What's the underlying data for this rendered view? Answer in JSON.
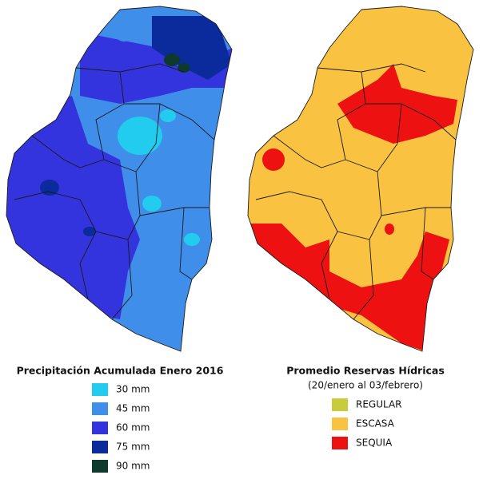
{
  "left_map": {
    "title": "Precipitación Acumulada Enero 2016",
    "legend": [
      {
        "label": "30 mm",
        "color": "#22ccee"
      },
      {
        "label": "45 mm",
        "color": "#3f8fea"
      },
      {
        "label": "60 mm",
        "color": "#3434de"
      },
      {
        "label": "75 mm",
        "color": "#0b2a9c"
      },
      {
        "label": "90 mm",
        "color": "#0d3a2c"
      }
    ]
  },
  "right_map": {
    "title": "Promedio Reservas Hídricas",
    "subtitle": "(20/enero al 03/febrero)",
    "legend": [
      {
        "label": "REGULAR",
        "color": "#c6cc3a"
      },
      {
        "label": "ESCASA",
        "color": "#f9c241"
      },
      {
        "label": "SEQUIA",
        "color": "#ee1111"
      }
    ]
  }
}
